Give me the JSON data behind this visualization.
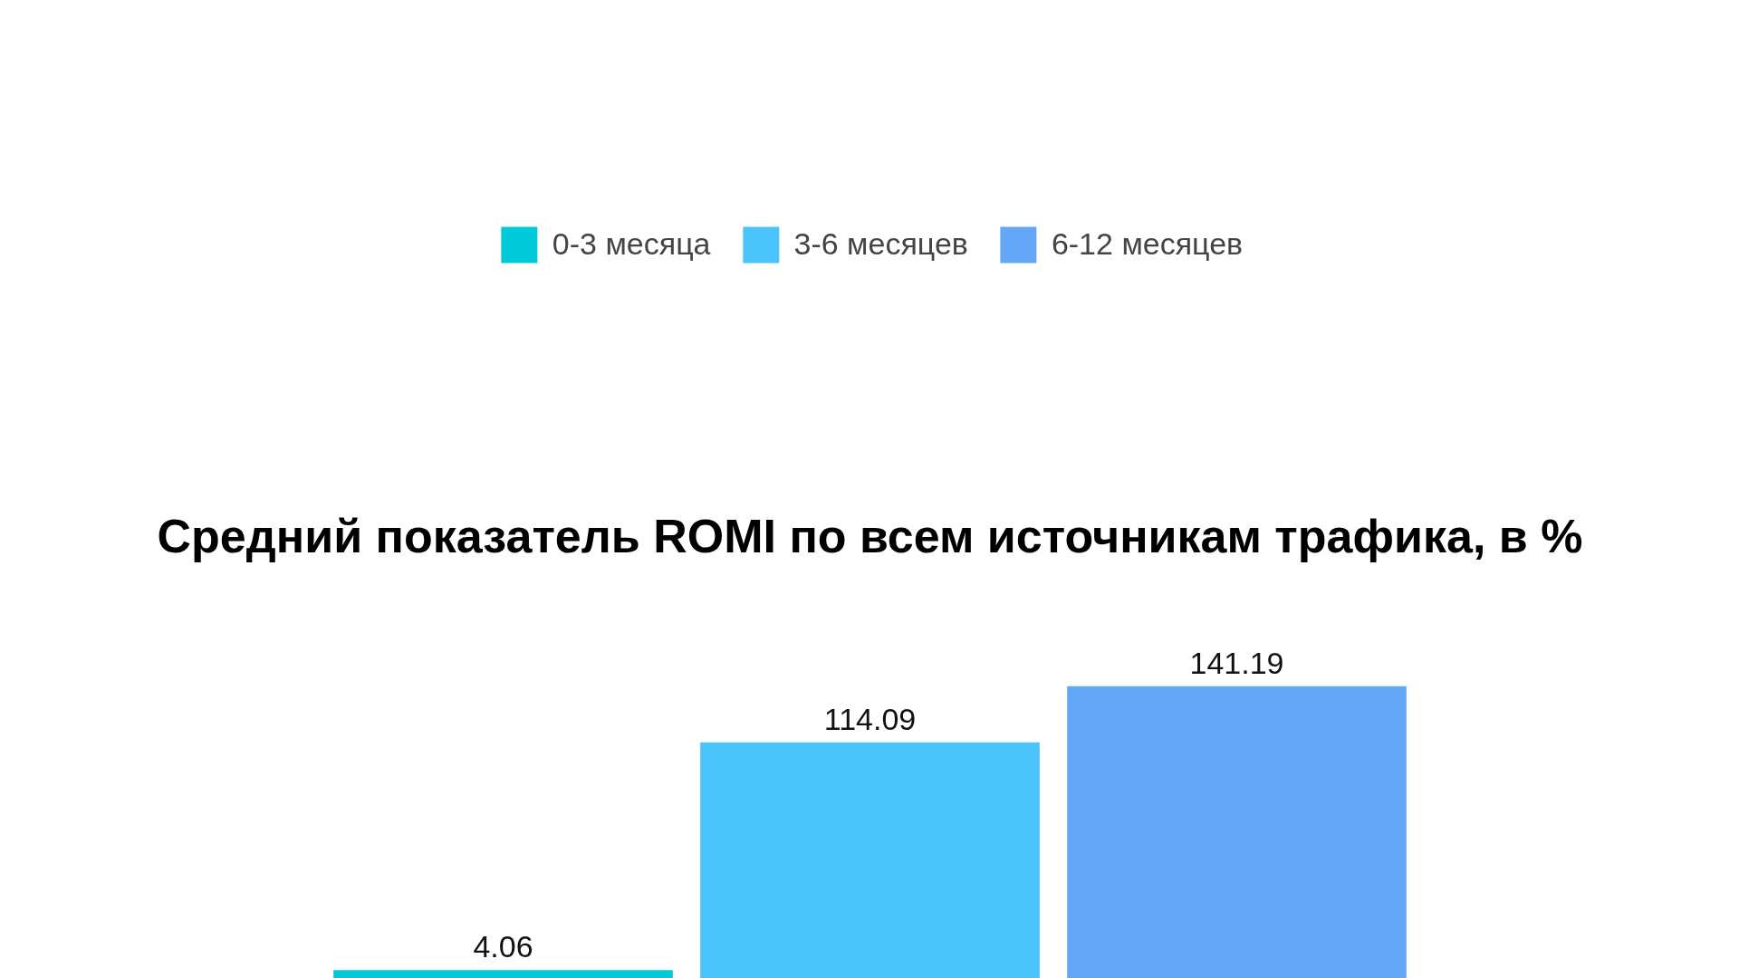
{
  "chart_data": {
    "type": "bar",
    "title": "Средний показатель ROMI по всем источникам трафика, в %",
    "categories": [
      null
    ],
    "series": [
      {
        "name": "0-3 месяца",
        "color": "#00c9d8",
        "values": [
          4.06
        ]
      },
      {
        "name": "3-6 месяцев",
        "color": "#4bc3fb",
        "values": [
          114.09
        ]
      },
      {
        "name": "6-12 месяцев",
        "color": "#65a7f7",
        "values": [
          141.19
        ]
      }
    ],
    "data_labels": true,
    "legend": "top",
    "grid": false
  }
}
